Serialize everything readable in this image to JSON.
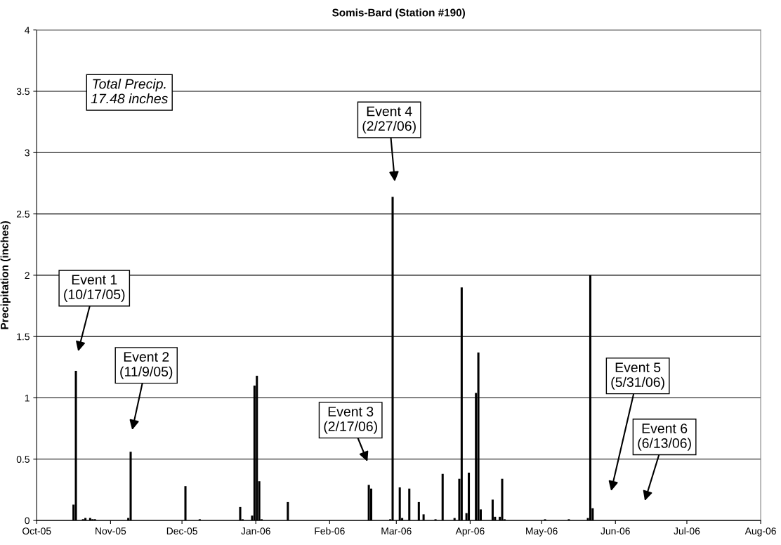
{
  "chart_data": {
    "type": "bar",
    "title": "Somis-Bard (Station #190)",
    "ylabel": "Precipitation (inches)",
    "x": [
      "2005-10-16",
      "2005-10-17",
      "2005-10-20",
      "2005-10-21",
      "2005-10-23",
      "2005-10-24",
      "2005-10-25",
      "2005-11-08",
      "2005-11-09",
      "2005-12-02",
      "2005-12-08",
      "2005-12-25",
      "2005-12-26",
      "2005-12-30",
      "2005-12-31",
      "2006-01-01",
      "2006-01-02",
      "2006-01-03",
      "2006-01-14",
      "2006-02-17",
      "2006-02-18",
      "2006-02-26",
      "2006-02-27",
      "2006-03-02",
      "2006-03-03",
      "2006-03-06",
      "2006-03-10",
      "2006-03-12",
      "2006-03-17",
      "2006-03-20",
      "2006-03-25",
      "2006-03-27",
      "2006-03-28",
      "2006-03-30",
      "2006-03-31",
      "2006-04-03",
      "2006-04-04",
      "2006-04-05",
      "2006-04-10",
      "2006-04-11",
      "2006-04-13",
      "2006-04-14",
      "2006-04-15",
      "2006-05-02",
      "2006-05-12",
      "2006-05-20",
      "2006-05-21",
      "2006-05-22"
    ],
    "values": [
      0.13,
      1.22,
      0.01,
      0.02,
      0.02,
      0.01,
      0.01,
      0.02,
      0.56,
      0.28,
      0.01,
      0.11,
      0.01,
      0.04,
      1.1,
      1.18,
      0.32,
      0.01,
      0.15,
      0.29,
      0.26,
      0.01,
      2.64,
      0.27,
      0.02,
      0.26,
      0.15,
      0.05,
      0.01,
      0.38,
      0.02,
      0.34,
      1.9,
      0.06,
      0.39,
      1.04,
      1.37,
      0.09,
      0.17,
      0.03,
      0.03,
      0.34,
      0.01,
      0.01,
      0.01,
      0.02,
      2.0,
      0.1
    ],
    "color": "#000000",
    "xlim": [
      "2005-10-01",
      "2006-08-01"
    ],
    "xticks": [
      {
        "value": "2005-10-01",
        "label": "Oct-05"
      },
      {
        "value": "2005-11-01",
        "label": "Nov-05"
      },
      {
        "value": "2005-12-01",
        "label": "Dec-05"
      },
      {
        "value": "2006-01-01",
        "label": "Jan-06"
      },
      {
        "value": "2006-02-01",
        "label": "Feb-06"
      },
      {
        "value": "2006-03-01",
        "label": "Mar-06"
      },
      {
        "value": "2006-04-01",
        "label": "Apr-06"
      },
      {
        "value": "2006-05-01",
        "label": "May-06"
      },
      {
        "value": "2006-06-01",
        "label": "Jun-06"
      },
      {
        "value": "2006-07-01",
        "label": "Jul-06"
      },
      {
        "value": "2006-08-01",
        "label": "Aug-06"
      }
    ],
    "ylim": [
      0,
      4
    ],
    "yticks": [
      0,
      0.5,
      1,
      1.5,
      2,
      2.5,
      3,
      3.5,
      4
    ],
    "grid": "y",
    "legend": false,
    "annotations": [
      "Total Precip.\n17.48 inches",
      "Event 1\n(10/17/05)",
      "Event 2\n(11/9/05)",
      "Event 3\n(2/17/06)",
      "Event 4\n(2/27/06)",
      "Event 5\n(5/31/06)",
      "Event 6\n(6/13/06)"
    ]
  }
}
